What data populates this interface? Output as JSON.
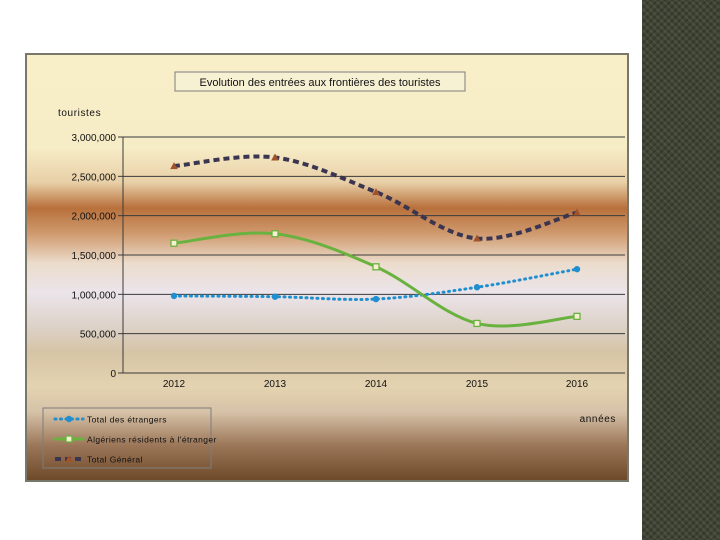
{
  "chart_data": {
    "type": "line",
    "title": "Evolution des entrées aux frontières des touristes",
    "ylabel": "touristes",
    "xlabel": "années",
    "categories": [
      "2012",
      "2013",
      "2014",
      "2015",
      "2016"
    ],
    "ylim": [
      0,
      3000000
    ],
    "yticks": [
      0,
      500000,
      1000000,
      1500000,
      2000000,
      2500000,
      3000000
    ],
    "ytick_labels": [
      "0",
      "500,000",
      "1,000,000",
      "1,500,000",
      "2,000,000",
      "2,500,000",
      "3,000,000"
    ],
    "grid": true,
    "legend_position": "bottom-left",
    "series": [
      {
        "name": "Total des étrangers",
        "values": [
          980000,
          970000,
          940000,
          1090000,
          1320000
        ],
        "color": "#1f8fd0",
        "marker": "circle",
        "dash": "dotted"
      },
      {
        "name": "Algériens résidents à l'étranger",
        "values": [
          1650000,
          1770000,
          1350000,
          630000,
          720000
        ],
        "color": "#6ab23f",
        "marker": "square",
        "dash": "solid"
      },
      {
        "name": "Total Général",
        "values": [
          2630000,
          2740000,
          2300000,
          1710000,
          2040000
        ],
        "color": "#3a3550",
        "marker": "triangle",
        "dash": "dashed"
      }
    ]
  }
}
